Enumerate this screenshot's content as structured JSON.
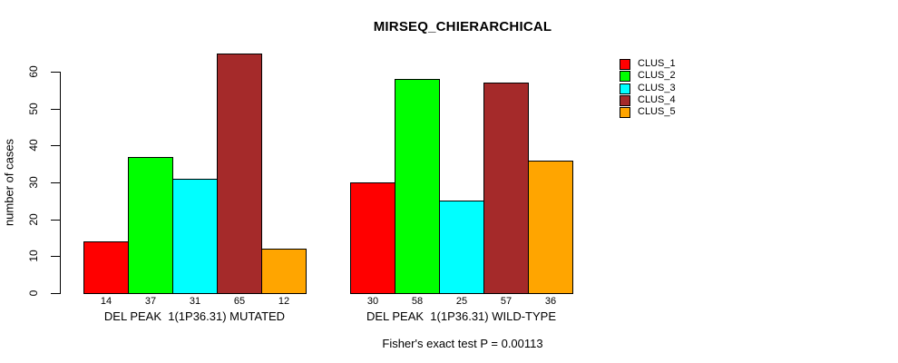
{
  "title": "MIRSEQ_CHIERARCHICAL",
  "ylabel": "number of cases",
  "footer": "Fisher's exact test P = 0.00113",
  "legend": {
    "position": "top-right",
    "items": [
      {
        "label": "CLUS_1",
        "color": "#FF0000"
      },
      {
        "label": "CLUS_2",
        "color": "#00FF00"
      },
      {
        "label": "CLUS_3",
        "color": "#00FFFF"
      },
      {
        "label": "CLUS_4",
        "color": "#A52A2A"
      },
      {
        "label": "CLUS_5",
        "color": "#FFA500"
      }
    ]
  },
  "chart_data": {
    "type": "bar",
    "title": "MIRSEQ_CHIERARCHICAL",
    "xlabel": "",
    "ylabel": "number of cases",
    "ylim": [
      0,
      65
    ],
    "yticks": [
      0,
      10,
      20,
      30,
      40,
      50,
      60
    ],
    "grid": false,
    "legend_position": "top-right",
    "bar_borders": "black",
    "categories": [
      "DEL PEAK  1(1P36.31) MUTATED",
      "DEL PEAK  1(1P36.31) WILD-TYPE"
    ],
    "series": [
      {
        "name": "CLUS_1",
        "color": "#FF0000",
        "values": [
          14,
          30
        ]
      },
      {
        "name": "CLUS_2",
        "color": "#00FF00",
        "values": [
          37,
          58
        ]
      },
      {
        "name": "CLUS_3",
        "color": "#00FFFF",
        "values": [
          31,
          25
        ]
      },
      {
        "name": "CLUS_4",
        "color": "#A52A2A",
        "values": [
          65,
          57
        ]
      },
      {
        "name": "CLUS_5",
        "color": "#FFA500",
        "values": [
          12,
          36
        ]
      }
    ],
    "bar_value_labels": {
      "DEL PEAK  1(1P36.31) MUTATED": [
        14,
        37,
        31,
        65,
        12
      ],
      "DEL PEAK  1(1P36.31) WILD-TYPE": [
        30,
        58,
        25,
        57,
        36
      ]
    },
    "annotation": "Fisher's exact test P = 0.00113"
  }
}
